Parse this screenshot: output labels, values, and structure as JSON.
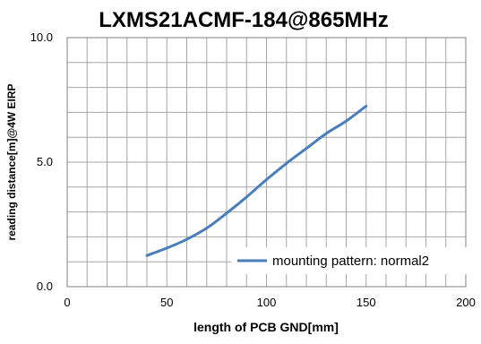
{
  "chart_data": {
    "type": "line",
    "title": "LXMS21ACMF-184@865MHz",
    "xlabel": "length of PCB GND[mm]",
    "ylabel": "reading distance[m]@4W EIRP",
    "xlim": [
      0,
      200
    ],
    "ylim": [
      0,
      10
    ],
    "x_ticks": [
      0,
      50,
      100,
      150,
      200
    ],
    "x_tick_labels": [
      "0",
      "50",
      "100",
      "150",
      "200"
    ],
    "y_ticks": [
      0,
      5,
      10
    ],
    "y_tick_labels": [
      "0.0",
      "5.0",
      "10.0"
    ],
    "grid": true,
    "legend_position": "bottom-right",
    "series": [
      {
        "name": "mounting pattern: normal2",
        "color": "#4a7ebb",
        "x": [
          40,
          50,
          60,
          70,
          80,
          90,
          100,
          110,
          120,
          130,
          140,
          150
        ],
        "y": [
          1.25,
          1.55,
          1.9,
          2.35,
          2.95,
          3.6,
          4.3,
          4.95,
          5.55,
          6.15,
          6.65,
          7.25
        ]
      }
    ]
  }
}
